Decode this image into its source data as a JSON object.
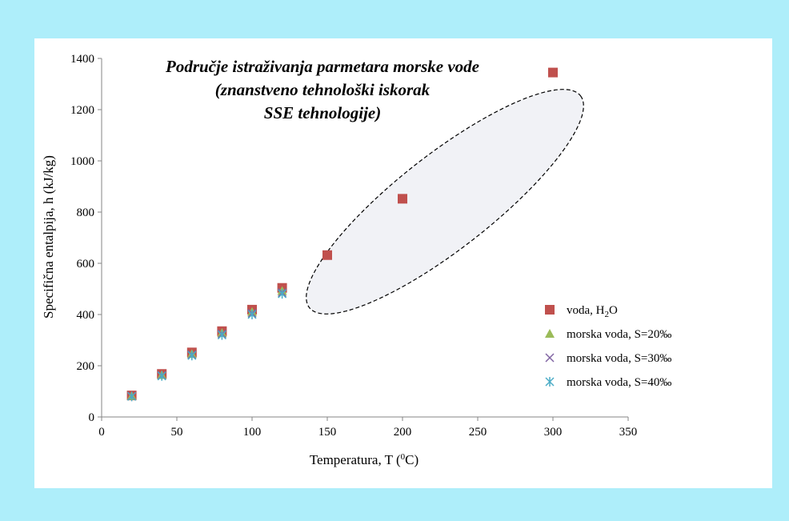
{
  "chart_data": {
    "type": "scatter",
    "xlabel": "Temperatura,  T (",
    "xlabel_sup": "0",
    "xlabel_end": "C)",
    "ylabel": "Specifična entalpija, h (kJ/kg)",
    "xlim": [
      0,
      350
    ],
    "ylim": [
      0,
      1400
    ],
    "xticks": [
      0,
      50,
      100,
      150,
      200,
      250,
      300,
      350
    ],
    "yticks": [
      0,
      200,
      400,
      600,
      800,
      1000,
      1200,
      1400
    ],
    "grid": false,
    "legend_position": "right",
    "annotation": {
      "lines": [
        "Područje istraživanja parmetara morske vode",
        "(znanstveno tehnološki iskorak",
        "SSE tehnologije)"
      ]
    },
    "series": [
      {
        "name": "voda, H",
        "name_sub": "2",
        "name_end": "O",
        "marker": "square",
        "color": "#c0504d",
        "x": [
          20,
          40,
          60,
          80,
          100,
          120,
          150,
          200,
          300
        ],
        "y": [
          84,
          168,
          252,
          335,
          419,
          504,
          632,
          852,
          1345
        ]
      },
      {
        "name": "morska voda, S=20‰",
        "marker": "triangle",
        "color": "#9bbb59",
        "x": [
          20,
          40,
          60,
          80,
          100,
          120
        ],
        "y": [
          82,
          164,
          246,
          328,
          410,
          492
        ]
      },
      {
        "name": "morska voda, S=30‰",
        "marker": "x",
        "color": "#8064a2",
        "x": [
          20,
          40,
          60,
          80,
          100,
          120
        ],
        "y": [
          81,
          162,
          243,
          324,
          405,
          486
        ]
      },
      {
        "name": "morska voda, S=40‰",
        "marker": "star",
        "color": "#4bacc6",
        "x": [
          20,
          40,
          60,
          80,
          100,
          120
        ],
        "y": [
          80,
          160,
          240,
          320,
          400,
          481
        ]
      }
    ]
  }
}
